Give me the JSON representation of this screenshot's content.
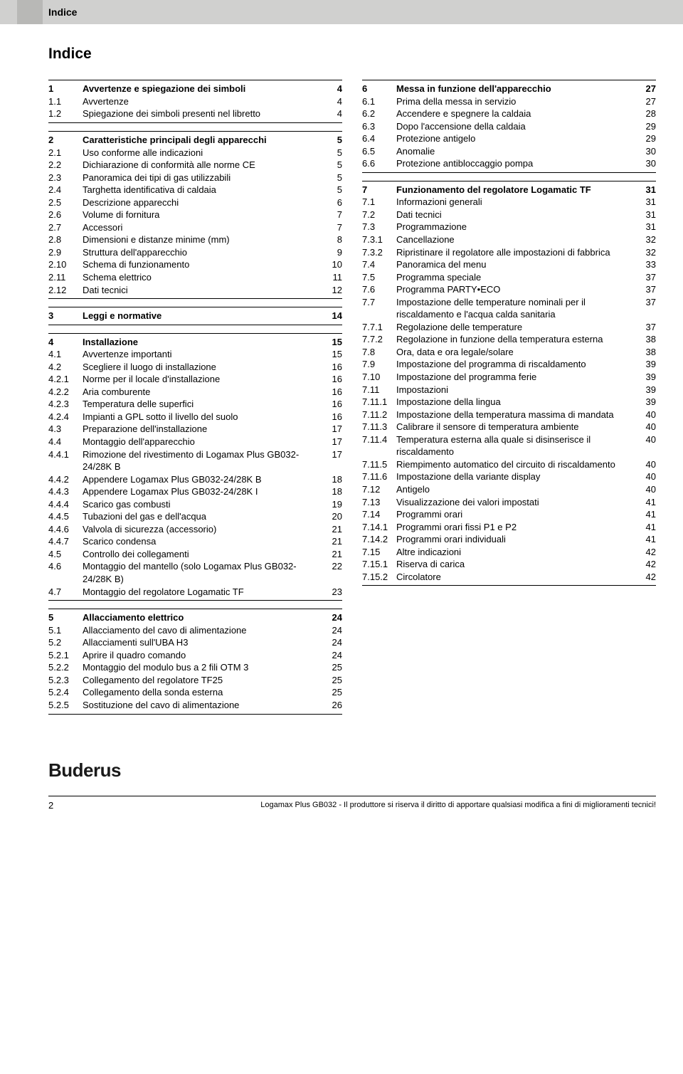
{
  "header": {
    "tab": "Indice"
  },
  "title": "Indice",
  "left": [
    {
      "rows": [
        {
          "n": "1",
          "t": "Avvertenze e spiegazione dei simboli",
          "p": "4",
          "b": true
        },
        {
          "n": "1.1",
          "t": "Avvertenze",
          "p": "4"
        },
        {
          "n": "1.2",
          "t": "Spiegazione dei simboli presenti nel libretto",
          "p": "4"
        }
      ]
    },
    {
      "rows": [
        {
          "n": "2",
          "t": "Caratteristiche principali degli apparecchi",
          "p": "5",
          "b": true
        },
        {
          "n": "2.1",
          "t": "Uso conforme alle indicazioni",
          "p": "5"
        },
        {
          "n": "2.2",
          "t": "Dichiarazione di conformità alle norme CE",
          "p": "5"
        },
        {
          "n": "2.3",
          "t": "Panoramica dei tipi di gas utilizzabili",
          "p": "5"
        },
        {
          "n": "2.4",
          "t": "Targhetta identificativa di caldaia",
          "p": "5"
        },
        {
          "n": "2.5",
          "t": "Descrizione apparecchi",
          "p": "6"
        },
        {
          "n": "2.6",
          "t": "Volume di fornitura",
          "p": "7"
        },
        {
          "n": "2.7",
          "t": "Accessori",
          "p": "7"
        },
        {
          "n": "2.8",
          "t": "Dimensioni e distanze minime (mm)",
          "p": "8"
        },
        {
          "n": "2.9",
          "t": "Struttura dell'apparecchio",
          "p": "9"
        },
        {
          "n": "2.10",
          "t": "Schema di funzionamento",
          "p": "10"
        },
        {
          "n": "2.11",
          "t": "Schema elettrico",
          "p": "11"
        },
        {
          "n": "2.12",
          "t": "Dati tecnici",
          "p": "12"
        }
      ]
    },
    {
      "rows": [
        {
          "n": "3",
          "t": "Leggi e normative",
          "p": "14",
          "b": true
        }
      ]
    },
    {
      "rows": [
        {
          "n": "4",
          "t": "Installazione",
          "p": "15",
          "b": true
        },
        {
          "n": "4.1",
          "t": "Avvertenze importanti",
          "p": "15"
        },
        {
          "n": "4.2",
          "t": "Scegliere il luogo di installazione",
          "p": "16"
        },
        {
          "n": "4.2.1",
          "t": "Norme per il locale d'installazione",
          "p": "16"
        },
        {
          "n": "4.2.2",
          "t": "Aria comburente",
          "p": "16"
        },
        {
          "n": "4.2.3",
          "t": "Temperatura delle superfici",
          "p": "16"
        },
        {
          "n": "4.2.4",
          "t": "Impianti a GPL sotto il livello del suolo",
          "p": "16"
        },
        {
          "n": "4.3",
          "t": "Preparazione dell'installazione",
          "p": "17"
        },
        {
          "n": "4.4",
          "t": "Montaggio dell'apparecchio",
          "p": "17"
        },
        {
          "n": "4.4.1",
          "t": "Rimozione del rivestimento di Logamax Plus GB032-24/28K B",
          "p": "17"
        },
        {
          "n": "4.4.2",
          "t": "Appendere Logamax Plus GB032-24/28K B",
          "p": "18"
        },
        {
          "n": "4.4.3",
          "t": "Appendere Logamax Plus GB032-24/28K I",
          "p": "18"
        },
        {
          "n": "4.4.4",
          "t": "Scarico gas combusti",
          "p": "19"
        },
        {
          "n": "4.4.5",
          "t": "Tubazioni del gas e dell'acqua",
          "p": "20"
        },
        {
          "n": "4.4.6",
          "t": "Valvola di sicurezza (accessorio)",
          "p": "21"
        },
        {
          "n": "4.4.7",
          "t": "Scarico condensa",
          "p": "21"
        },
        {
          "n": "4.5",
          "t": "Controllo dei collegamenti",
          "p": "21"
        },
        {
          "n": "4.6",
          "t": "Montaggio del mantello (solo Logamax Plus GB032-24/28K B)",
          "p": "22"
        },
        {
          "n": "4.7",
          "t": "Montaggio del regolatore Logamatic TF",
          "p": "23"
        }
      ]
    },
    {
      "rows": [
        {
          "n": "5",
          "t": "Allacciamento elettrico",
          "p": "24",
          "b": true
        },
        {
          "n": "5.1",
          "t": "Allacciamento del cavo di alimentazione",
          "p": "24"
        },
        {
          "n": "5.2",
          "t": "Allacciamenti sull'UBA H3",
          "p": "24"
        },
        {
          "n": "5.2.1",
          "t": "Aprire il quadro comando",
          "p": "24"
        },
        {
          "n": "5.2.2",
          "t": "Montaggio del modulo bus a 2 fili OTM 3",
          "p": "25"
        },
        {
          "n": "5.2.3",
          "t": "Collegamento del regolatore TF25",
          "p": "25"
        },
        {
          "n": "5.2.4",
          "t": "Collegamento della sonda esterna",
          "p": "25"
        },
        {
          "n": "5.2.5",
          "t": "Sostituzione del cavo di alimentazione",
          "p": "26"
        }
      ]
    }
  ],
  "right": [
    {
      "rows": [
        {
          "n": "6",
          "t": "Messa in funzione dell'apparecchio",
          "p": "27",
          "b": true
        },
        {
          "n": "6.1",
          "t": "Prima della messa in servizio",
          "p": "27"
        },
        {
          "n": "6.2",
          "t": "Accendere e spegnere la caldaia",
          "p": "28"
        },
        {
          "n": "6.3",
          "t": "Dopo l'accensione della caldaia",
          "p": "29"
        },
        {
          "n": "6.4",
          "t": "Protezione antigelo",
          "p": "29"
        },
        {
          "n": "6.5",
          "t": "Anomalie",
          "p": "30"
        },
        {
          "n": "6.6",
          "t": "Protezione antibloccaggio pompa",
          "p": "30"
        }
      ]
    },
    {
      "rows": [
        {
          "n": "7",
          "t": "Funzionamento del regolatore Logamatic TF",
          "p": "31",
          "b": true
        },
        {
          "n": "7.1",
          "t": "Informazioni generali",
          "p": "31"
        },
        {
          "n": "7.2",
          "t": "Dati tecnici",
          "p": "31"
        },
        {
          "n": "7.3",
          "t": "Programmazione",
          "p": "31"
        },
        {
          "n": "7.3.1",
          "t": "Cancellazione",
          "p": "32"
        },
        {
          "n": "7.3.2",
          "t": "Ripristinare il regolatore alle impostazioni di fabbrica",
          "p": "32"
        },
        {
          "n": "7.4",
          "t": "Panoramica del menu",
          "p": "33"
        },
        {
          "n": "7.5",
          "t": "Programma speciale",
          "p": "37"
        },
        {
          "n": "7.6",
          "t": "Programma PARTY•ECO",
          "p": "37"
        },
        {
          "n": "7.7",
          "t": "Impostazione delle temperature nominali per il riscaldamento e l'acqua calda sanitaria",
          "p": "37"
        },
        {
          "n": "7.7.1",
          "t": "Regolazione delle temperature",
          "p": "37"
        },
        {
          "n": "7.7.2",
          "t": "Regolazione in funzione della temperatura esterna",
          "p": "38"
        },
        {
          "n": "7.8",
          "t": "Ora, data e ora legale/solare",
          "p": "38"
        },
        {
          "n": "7.9",
          "t": "Impostazione del programma di riscaldamento",
          "p": "39"
        },
        {
          "n": "7.10",
          "t": "Impostazione del programma ferie",
          "p": "39"
        },
        {
          "n": "7.11",
          "t": "Impostazioni",
          "p": "39"
        },
        {
          "n": "7.11.1",
          "t": "Impostazione della lingua",
          "p": "39"
        },
        {
          "n": "7.11.2",
          "t": "Impostazione della temperatura massima di mandata",
          "p": "40"
        },
        {
          "n": "7.11.3",
          "t": "Calibrare il sensore di temperatura ambiente",
          "p": "40"
        },
        {
          "n": "7.11.4",
          "t": "Temperatura esterna alla quale si disinserisce il riscaldamento",
          "p": "40"
        },
        {
          "n": "7.11.5",
          "t": "Riempimento automatico del circuito di riscaldamento",
          "p": "40"
        },
        {
          "n": "7.11.6",
          "t": "Impostazione della variante display",
          "p": "40"
        },
        {
          "n": "7.12",
          "t": "Antigelo",
          "p": "40"
        },
        {
          "n": "7.13",
          "t": "Visualizzazione dei valori impostati",
          "p": "41"
        },
        {
          "n": "7.14",
          "t": "Programmi orari",
          "p": "41"
        },
        {
          "n": "7.14.1",
          "t": "Programmi orari fissi P1 e P2",
          "p": "41"
        },
        {
          "n": "7.14.2",
          "t": "Programmi orari individuali",
          "p": "41"
        },
        {
          "n": "7.15",
          "t": "Altre indicazioni",
          "p": "42"
        },
        {
          "n": "7.15.1",
          "t": "Riserva di carica",
          "p": "42"
        },
        {
          "n": "7.15.2",
          "t": "Circolatore",
          "p": "42"
        }
      ]
    }
  ],
  "footer": {
    "logo": "Buderus",
    "pagenum": "2",
    "disclaimer": "Logamax Plus GB032 - Il produttore si riserva il diritto di apportare qualsiasi modifica a fini di miglioramenti tecnici!"
  }
}
